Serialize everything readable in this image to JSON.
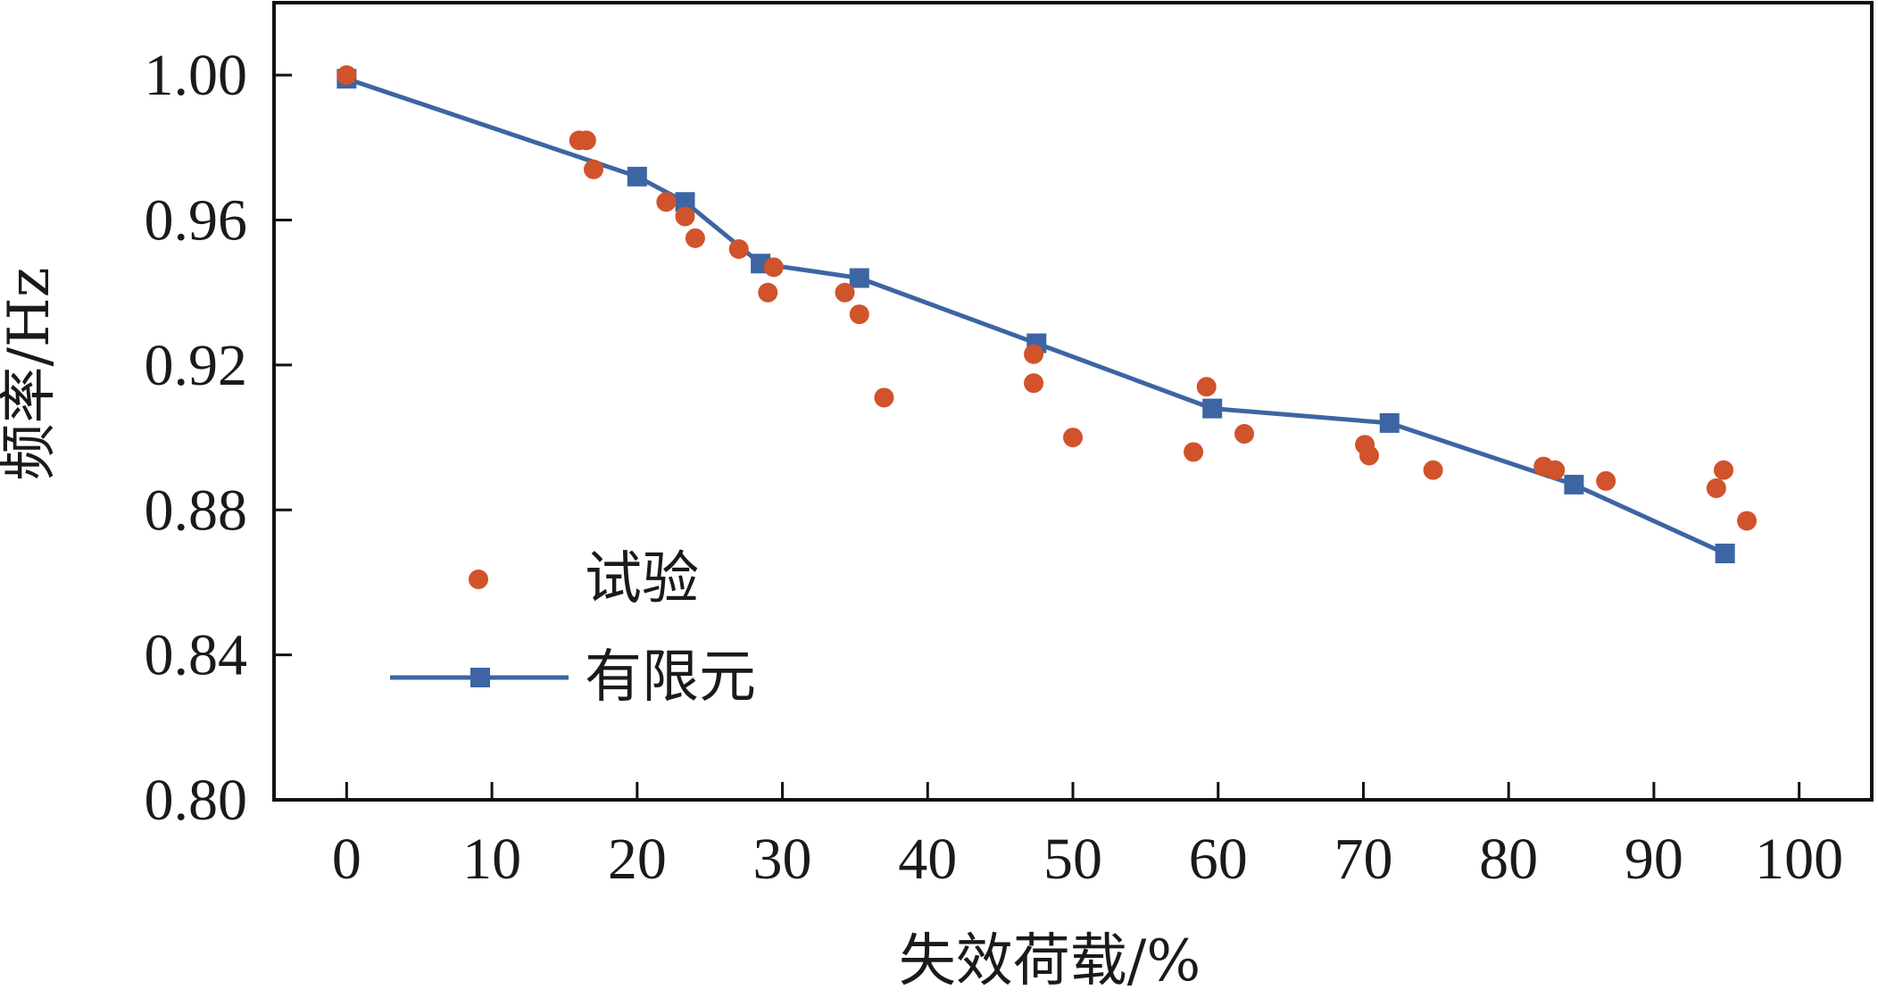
{
  "chart_data": {
    "type": "scatter",
    "title": "",
    "xlabel": "失效荷载/%",
    "ylabel": "频率/Hz",
    "xlim": [
      -5,
      105
    ],
    "ylim": [
      0.8,
      1.02
    ],
    "x_ticks": [
      0,
      10,
      20,
      30,
      40,
      50,
      60,
      70,
      80,
      90,
      100
    ],
    "x_tick_labels": [
      "0",
      "10",
      "20",
      "30",
      "40",
      "50",
      "60",
      "70",
      "80",
      "90",
      "100"
    ],
    "y_ticks": [
      0.8,
      0.84,
      0.88,
      0.92,
      0.96,
      1.0
    ],
    "y_tick_labels": [
      "0.80",
      "0.84",
      "0.88",
      "0.92",
      "0.96",
      "1.00"
    ],
    "grid": false,
    "legend_position": "bottom-left",
    "series": [
      {
        "name": "试验",
        "kind": "scatter",
        "color": "#d0532b",
        "marker": "circle",
        "points": [
          [
            0,
            1.0
          ],
          [
            16,
            0.982
          ],
          [
            16.5,
            0.982
          ],
          [
            17,
            0.974
          ],
          [
            22,
            0.965
          ],
          [
            23.3,
            0.961
          ],
          [
            24,
            0.955
          ],
          [
            27,
            0.952
          ],
          [
            29.4,
            0.947
          ],
          [
            29,
            0.94
          ],
          [
            34.3,
            0.94
          ],
          [
            35.3,
            0.934
          ],
          [
            37,
            0.911
          ],
          [
            47.3,
            0.923
          ],
          [
            47.3,
            0.915
          ],
          [
            50,
            0.9
          ],
          [
            58.3,
            0.896
          ],
          [
            59.2,
            0.914
          ],
          [
            61.8,
            0.901
          ],
          [
            70.1,
            0.898
          ],
          [
            70.4,
            0.895
          ],
          [
            74.8,
            0.891
          ],
          [
            82.4,
            0.892
          ],
          [
            83.2,
            0.891
          ],
          [
            86.7,
            0.888
          ],
          [
            94.3,
            0.886
          ],
          [
            94.8,
            0.891
          ],
          [
            96.4,
            0.877
          ]
        ]
      },
      {
        "name": "有限元",
        "kind": "line",
        "color": "#3d65a3",
        "marker": "square",
        "points": [
          [
            0,
            0.999
          ],
          [
            20,
            0.972
          ],
          [
            23.3,
            0.965
          ],
          [
            28.5,
            0.948
          ],
          [
            35.3,
            0.944
          ],
          [
            47.5,
            0.926
          ],
          [
            59.6,
            0.908
          ],
          [
            71.8,
            0.904
          ],
          [
            84.5,
            0.887
          ],
          [
            94.9,
            0.868
          ]
        ]
      }
    ]
  }
}
